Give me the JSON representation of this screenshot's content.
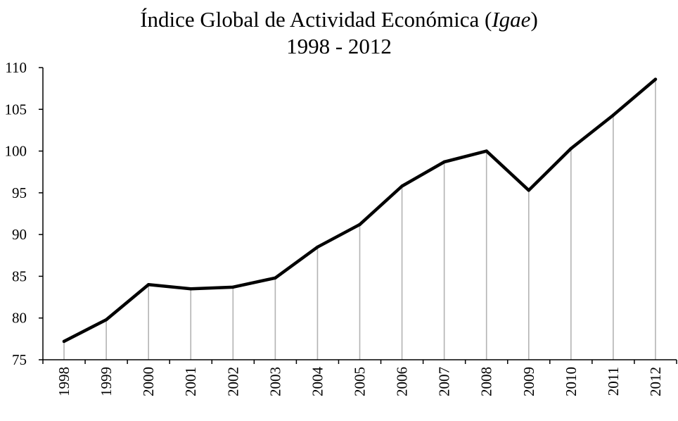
{
  "colors": {
    "line": "#000000",
    "drop_lines": "#b3b3b3",
    "axis": "#000000",
    "background": "#ffffff"
  },
  "chart_data": {
    "type": "line",
    "title": {
      "main": "Índice Global de Actividad Económica (",
      "italic": "Igae",
      "close": ")"
    },
    "subtitle": "1998 - 2012",
    "xlabel": "",
    "ylabel": "",
    "categories": [
      "1998",
      "1999",
      "2000",
      "2001",
      "2002",
      "2003",
      "2004",
      "2005",
      "2006",
      "2007",
      "2008",
      "2009",
      "2010",
      "2011",
      "2012"
    ],
    "series": [
      {
        "values": [
          77.2,
          79.8,
          84.0,
          83.5,
          83.7,
          84.8,
          88.5,
          91.2,
          95.8,
          98.7,
          100.0,
          95.3,
          100.3,
          104.3,
          108.6
        ]
      }
    ],
    "ylim": [
      75,
      110
    ],
    "yticks": [
      75,
      80,
      85,
      90,
      95,
      100,
      105,
      110
    ],
    "drop_lines": true,
    "grid": false,
    "legend": "none"
  }
}
